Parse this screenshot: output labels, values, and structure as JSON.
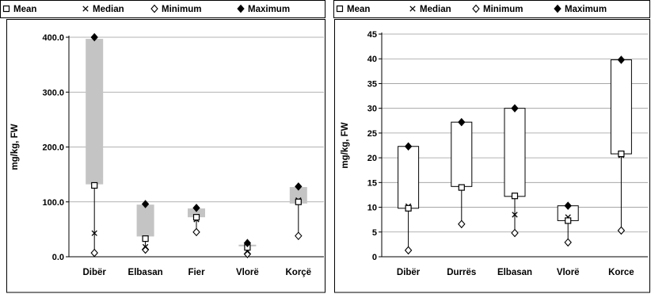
{
  "chart_data": [
    {
      "type": "box",
      "ylabel": "mg/kg, FW",
      "ylim": [
        0,
        400
      ],
      "yticks": [
        "0.0",
        "100.0",
        "200.0",
        "300.0",
        "400.0"
      ],
      "grid": true,
      "legend_position": "top",
      "legend": [
        "Mean",
        "Median",
        "Minimum",
        "Maximum"
      ],
      "box_style": "gray-filled",
      "categories": [
        "Dibër",
        "Elbasan",
        "Fier",
        "Vlorë",
        "Korçë"
      ],
      "series": [
        {
          "name": "Mean",
          "marker": "open-square",
          "values": [
            130,
            33,
            72,
            17,
            100
          ]
        },
        {
          "name": "Median",
          "marker": "cross",
          "values": [
            43,
            18,
            68,
            10,
            103
          ]
        },
        {
          "name": "Minimum",
          "marker": "open-diamond",
          "values": [
            7,
            13,
            45,
            5,
            38
          ]
        },
        {
          "name": "Maximum",
          "marker": "filled-diamond",
          "values": [
            400,
            96,
            89,
            25,
            128
          ]
        }
      ],
      "boxes": [
        {
          "low": 132,
          "high": 397
        },
        {
          "low": 37,
          "high": 95
        },
        {
          "low": 72,
          "high": 88
        },
        {
          "low": 19,
          "high": 22
        },
        {
          "low": 97,
          "high": 127
        }
      ]
    },
    {
      "type": "box",
      "ylabel": "mg/kg, FW",
      "ylim": [
        0,
        45
      ],
      "yticks": [
        "0",
        "5",
        "10",
        "15",
        "20",
        "25",
        "30",
        "35",
        "40",
        "45"
      ],
      "grid": true,
      "legend_position": "top",
      "legend": [
        "Mean",
        "Median",
        "Minimum",
        "Maximum"
      ],
      "box_style": "outline",
      "categories": [
        "Dibër",
        "Durrës",
        "Elbasan",
        "Vlorë",
        "Korce"
      ],
      "series": [
        {
          "name": "Mean",
          "marker": "open-square",
          "values": [
            9.8,
            14.0,
            12.3,
            7.3,
            20.8
          ]
        },
        {
          "name": "Median",
          "marker": "cross",
          "values": [
            10.2,
            14.1,
            8.5,
            8.0,
            20.5
          ]
        },
        {
          "name": "Minimum",
          "marker": "open-diamond",
          "values": [
            1.3,
            6.6,
            4.8,
            2.9,
            5.3
          ]
        },
        {
          "name": "Maximum",
          "marker": "filled-diamond",
          "values": [
            22.3,
            27.2,
            30.0,
            10.3,
            39.8
          ]
        }
      ],
      "boxes": [
        {
          "low": 9.8,
          "high": 22.3
        },
        {
          "low": 14.2,
          "high": 27.2
        },
        {
          "low": 12.2,
          "high": 30.0
        },
        {
          "low": 7.3,
          "high": 10.3
        },
        {
          "low": 20.8,
          "high": 39.8
        }
      ]
    }
  ]
}
